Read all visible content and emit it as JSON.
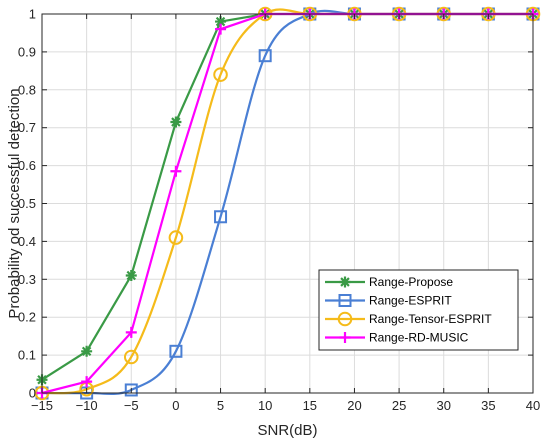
{
  "chart_data": {
    "type": "line",
    "title": "",
    "xlabel": "SNR(dB)",
    "ylabel": "Probability od successful detection",
    "x": [
      -15,
      -10,
      -5,
      0,
      5,
      10,
      15,
      20,
      25,
      30,
      35,
      40
    ],
    "x_ticks": [
      -15,
      -10,
      -5,
      0,
      5,
      10,
      15,
      20,
      25,
      30,
      35,
      40
    ],
    "x_tick_labels": [
      "−15",
      "−10",
      "−5",
      "0",
      "5",
      "10",
      "15",
      "20",
      "25",
      "30",
      "35",
      "40"
    ],
    "y_ticks": [
      0,
      0.1,
      0.2,
      0.3,
      0.4,
      0.5,
      0.6,
      0.7,
      0.8,
      0.9,
      1
    ],
    "y_tick_labels": [
      "0",
      "0.1",
      "0.2",
      "0.3",
      "0.4",
      "0.5",
      "0.6",
      "0.7",
      "0.8",
      "0.9",
      "1"
    ],
    "xlim": [
      -15,
      40
    ],
    "ylim": [
      0,
      1
    ],
    "grid": true,
    "legend_position": "lower-right",
    "series": [
      {
        "name": "Range-Propose",
        "color": "#3a9a46",
        "marker": "asterisk",
        "values": [
          0.035,
          0.11,
          0.31,
          0.715,
          0.98,
          1,
          1,
          1,
          1,
          1,
          1,
          1
        ]
      },
      {
        "name": "Range-ESPRIT",
        "color": "#4a7fd4",
        "marker": "square",
        "values": [
          0,
          0,
          0.008,
          0.11,
          0.465,
          0.89,
          1,
          1,
          1,
          1,
          1,
          1
        ]
      },
      {
        "name": "Range-Tensor-ESPRIT",
        "color": "#f5bb1a",
        "marker": "circle",
        "values": [
          0,
          0.01,
          0.095,
          0.41,
          0.84,
          1,
          1,
          1,
          1,
          1,
          1,
          1
        ]
      },
      {
        "name": "Range-RD-MUSIC",
        "color": "#ff00ff",
        "marker": "plus",
        "values": [
          0,
          0.03,
          0.16,
          0.585,
          0.96,
          1,
          1,
          1,
          1,
          1,
          1,
          1
        ]
      }
    ]
  }
}
